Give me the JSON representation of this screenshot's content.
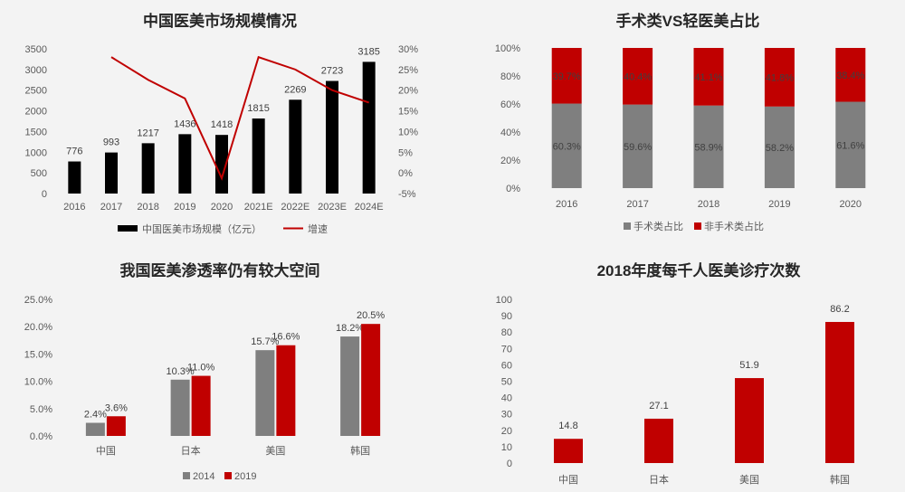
{
  "chart_data": [
    {
      "type": "bar",
      "title": "中国医美市场规模情况",
      "categories": [
        "2016",
        "2017",
        "2018",
        "2019",
        "2020",
        "2021E",
        "2022E",
        "2023E",
        "2024E"
      ],
      "series": [
        {
          "name": "中国医美市场规模（亿元）",
          "kind": "bar",
          "axis": "left",
          "color": "#000000",
          "values": [
            776,
            993,
            1217,
            1436,
            1418,
            1815,
            2269,
            2723,
            3185
          ]
        },
        {
          "name": "增速",
          "kind": "line",
          "axis": "right",
          "color": "#c00000",
          "values": [
            null,
            28,
            22.5,
            18,
            -1.3,
            28,
            25,
            20,
            17
          ]
        }
      ],
      "ylim": [
        0,
        3500
      ],
      "yticks": [
        0,
        500,
        1000,
        1500,
        2000,
        2500,
        3000,
        3500
      ],
      "y2lim": [
        -5,
        30
      ],
      "y2ticks": [
        "-5%",
        "0%",
        "5%",
        "10%",
        "15%",
        "20%",
        "25%",
        "30%"
      ],
      "legend": "bottom"
    },
    {
      "type": "bar",
      "stacked": true,
      "title": "手术类VS轻医美占比",
      "categories": [
        "2016",
        "2017",
        "2018",
        "2019",
        "2020"
      ],
      "series": [
        {
          "name": "手术类占比",
          "color": "#7f7f7f",
          "values": [
            60.3,
            59.6,
            58.9,
            58.2,
            61.6
          ],
          "labels": [
            "60.3%",
            "59.6%",
            "58.9%",
            "58.2%",
            "61.6%"
          ]
        },
        {
          "name": "非手术类占比",
          "color": "#c00000",
          "values": [
            39.7,
            40.4,
            41.1,
            41.8,
            38.4
          ],
          "labels": [
            "39.7%",
            "40.4%",
            "41.1%",
            "41.8%",
            "38.4%"
          ]
        }
      ],
      "ylim": [
        0,
        100
      ],
      "yticks": [
        "0%",
        "20%",
        "40%",
        "60%",
        "80%",
        "100%"
      ],
      "legend": "bottom"
    },
    {
      "type": "bar",
      "title": "我国医美渗透率仍有较大空间",
      "categories": [
        "中国",
        "日本",
        "美国",
        "韩国"
      ],
      "series": [
        {
          "name": "2014",
          "color": "#7f7f7f",
          "values": [
            2.4,
            10.3,
            15.7,
            18.2
          ],
          "labels": [
            "2.4%",
            "10.3%",
            "15.7%",
            "18.2%"
          ]
        },
        {
          "name": "2019",
          "color": "#c00000",
          "values": [
            3.6,
            11.0,
            16.6,
            20.5
          ],
          "labels": [
            "3.6%",
            "11.0%",
            "16.6%",
            "20.5%"
          ]
        }
      ],
      "ylim": [
        0,
        25
      ],
      "yticks": [
        "0.0%",
        "5.0%",
        "10.0%",
        "15.0%",
        "20.0%",
        "25.0%"
      ],
      "legend": "bottom"
    },
    {
      "type": "bar",
      "title": "2018年度每千人医美诊疗次数",
      "categories": [
        "中国",
        "日本",
        "美国",
        "韩国"
      ],
      "series": [
        {
          "color": "#c00000",
          "values": [
            14.8,
            27.1,
            51.9,
            86.2
          ],
          "labels": [
            "14.8",
            "27.1",
            "51.9",
            "86.2"
          ]
        }
      ],
      "ylim": [
        0,
        100
      ],
      "yticks": [
        "0",
        "10",
        "20",
        "30",
        "40",
        "50",
        "60",
        "70",
        "80",
        "90",
        "100"
      ]
    }
  ]
}
